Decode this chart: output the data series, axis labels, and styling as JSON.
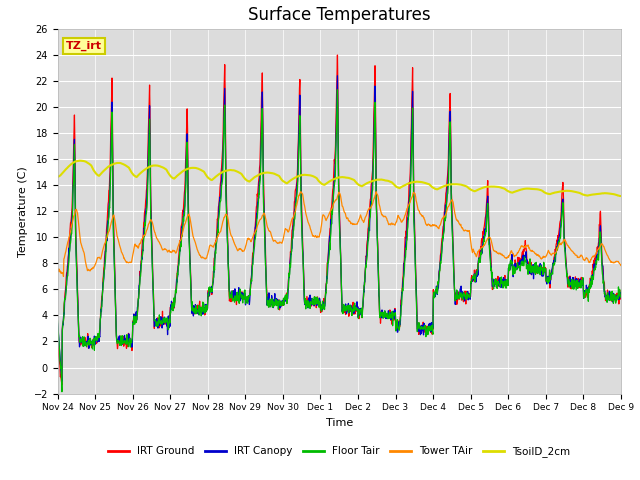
{
  "title": "Surface Temperatures",
  "xlabel": "Time",
  "ylabel": "Temperature (C)",
  "ylim": [
    -2,
    26
  ],
  "yticks": [
    -2,
    0,
    2,
    4,
    6,
    8,
    10,
    12,
    14,
    16,
    18,
    20,
    22,
    24,
    26
  ],
  "plot_bg_color": "#dcdcdc",
  "fig_bg_color": "#ffffff",
  "legend": [
    "IRT Ground",
    "IRT Canopy",
    "Floor Tair",
    "Tower TAir",
    "TsoilD_2cm"
  ],
  "legend_colors": [
    "#ff0000",
    "#0000cc",
    "#00bb00",
    "#ff8800",
    "#dddd00"
  ],
  "annotation_text": "TZ_irt",
  "annotation_bg": "#ffff99",
  "annotation_border": "#cccc00",
  "xtick_labels": [
    "Nov 24",
    "Nov 25",
    "Nov 26",
    "Nov 27",
    "Nov 28",
    "Nov 29",
    "Nov 30",
    "Dec 1",
    "Dec 2",
    "Dec 3",
    "Dec 4",
    "Dec 5",
    "Dec 6",
    "Dec 7",
    "Dec 8",
    "Dec 9"
  ]
}
